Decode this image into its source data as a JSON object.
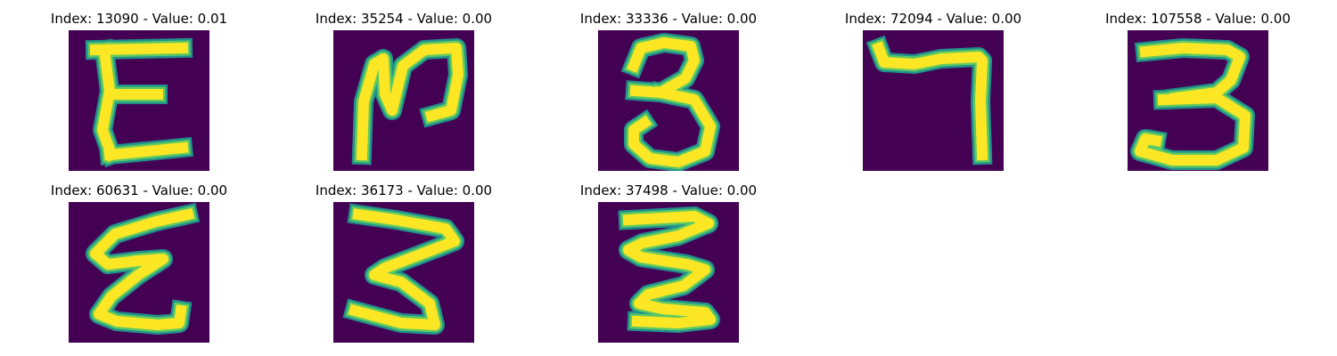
{
  "colors": {
    "background": "#440154",
    "edge": "#21918c",
    "edge_light": "#5ec962",
    "ink": "#fde725"
  },
  "panels": [
    {
      "title": "Index: 13090 - Value: 0.01",
      "image_name": "digit-image-13090"
    },
    {
      "title": "Index: 35254 - Value: 0.00",
      "image_name": "digit-image-35254"
    },
    {
      "title": "Index: 33336 - Value: 0.00",
      "image_name": "digit-image-33336"
    },
    {
      "title": "Index: 72094 - Value: 0.00",
      "image_name": "digit-image-72094"
    },
    {
      "title": "Index: 107558 - Value: 0.00",
      "image_name": "digit-image-107558"
    },
    {
      "title": "Index: 60631 - Value: 0.00",
      "image_name": "digit-image-60631"
    },
    {
      "title": "Index: 36173 - Value: 0.00",
      "image_name": "digit-image-36173"
    },
    {
      "title": "Index: 37498 - Value: 0.00",
      "image_name": "digit-image-37498"
    }
  ]
}
